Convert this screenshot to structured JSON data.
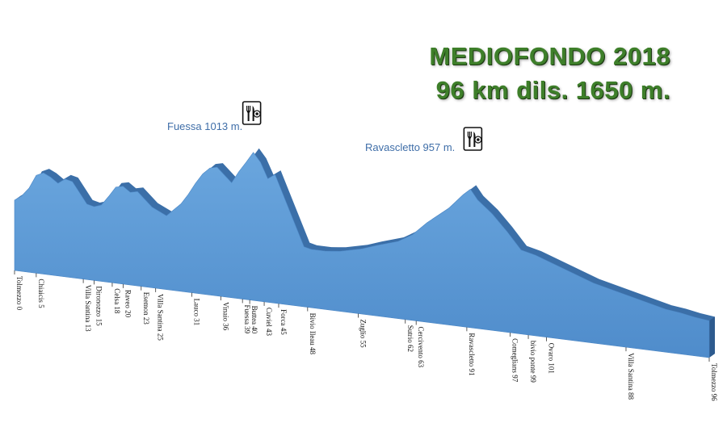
{
  "title": {
    "line1": "MEDIOFONDO  2018",
    "line2": "96 km  dils. 1650 m."
  },
  "peak_labels": [
    {
      "text": "Fuessa 1013  m.",
      "icon": "restaurant-icon"
    },
    {
      "text": "Ravascletto 957 m.",
      "icon": "restaurant-icon"
    }
  ],
  "colors": {
    "profile_fill": "#5b9bd5",
    "profile_side": "#3b6fa8",
    "profile_dark": "#2d5a8e",
    "title": "#3e7f2a",
    "peak_label": "#3f6ea8"
  },
  "chart_data": {
    "type": "area",
    "title": "MEDIOFONDO  2018",
    "subtitle": "96 km  dils. 1650 m.",
    "x_unit": "km",
    "y_unit": "m",
    "xlim": [
      0,
      96
    ],
    "ylim": [
      150,
      1050
    ],
    "x": [
      0,
      1,
      2,
      3,
      4,
      5,
      6,
      7,
      8,
      9,
      10,
      11,
      12,
      13,
      14,
      15,
      16,
      17,
      18,
      19,
      20,
      21,
      22,
      23,
      24,
      25,
      26,
      27,
      28,
      29,
      30,
      31,
      32,
      33,
      34,
      35,
      36,
      37,
      38,
      39,
      40,
      41,
      42,
      43,
      44,
      45,
      46,
      47,
      48,
      50,
      53,
      55,
      57,
      60,
      62,
      63,
      64,
      66,
      68,
      70,
      72,
      74,
      76,
      78,
      80,
      82,
      84,
      86,
      88,
      90,
      92,
      94,
      96
    ],
    "elevation": [
      560,
      590,
      640,
      720,
      740,
      720,
      690,
      720,
      710,
      650,
      590,
      580,
      595,
      650,
      710,
      720,
      690,
      700,
      660,
      620,
      600,
      580,
      620,
      660,
      720,
      790,
      850,
      890,
      900,
      860,
      820,
      890,
      950,
      1013,
      960,
      870,
      900,
      800,
      700,
      600,
      500,
      490,
      490,
      490,
      495,
      500,
      510,
      520,
      530,
      560,
      600,
      650,
      730,
      830,
      920,
      957,
      900,
      830,
      740,
      640,
      620,
      590,
      560,
      530,
      500,
      480,
      460,
      440,
      420,
      400,
      390,
      375,
      365
    ],
    "locations": [
      {
        "name": "Tolmezzo 0",
        "km": 0
      },
      {
        "name": "Chiaicis 5",
        "km": 3
      },
      {
        "name": "Villa Santina 13",
        "km": 9.5
      },
      {
        "name": "Dironozzo 15",
        "km": 11
      },
      {
        "name": "Celsa 18",
        "km": 13.5
      },
      {
        "name": "Raveo 20",
        "km": 15
      },
      {
        "name": "Esemon 23",
        "km": 17.5
      },
      {
        "name": "Villa Santina 25",
        "km": 19.5
      },
      {
        "name": "Lauco 31",
        "km": 24.5
      },
      {
        "name": "Vinaio 36",
        "km": 28.5
      },
      {
        "name": "Fuessa 39",
        "km": 31.5
      },
      {
        "name": "Buttea 40",
        "km": 32.5
      },
      {
        "name": "Cuviel 43",
        "km": 34.5
      },
      {
        "name": "Forca 45",
        "km": 36.5
      },
      {
        "name": "Bivio Ileau 48",
        "km": 40.5
      },
      {
        "name": "Zuglio 55",
        "km": 47.5
      },
      {
        "name": "Sutrio 62",
        "km": 54
      },
      {
        "name": "Cercivento 63",
        "km": 55.5
      },
      {
        "name": "Ravascletto 91",
        "km": 62.5
      },
      {
        "name": "Comeglians 97",
        "km": 68.5
      },
      {
        "name": "bivio ponte 99",
        "km": 71
      },
      {
        "name": "Ovaro 101",
        "km": 73.5
      },
      {
        "name": "Villa Santina 88",
        "km": 84.5
      },
      {
        "name": "Tolmezzo 96",
        "km": 96
      }
    ]
  }
}
